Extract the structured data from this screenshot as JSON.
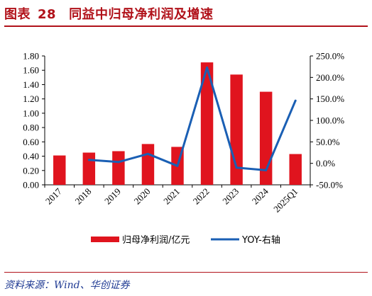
{
  "header": {
    "label": "图表",
    "number": "28",
    "title": "同益中归母净利润及增速"
  },
  "source": "资料来源：Wind、华创证券",
  "colors": {
    "bar": "#e0141e",
    "line": "#1a5fb4",
    "accent": "#b1121a"
  },
  "chart_data": {
    "type": "bar",
    "categories": [
      "2017",
      "2018",
      "2019",
      "2020",
      "2021",
      "2022",
      "2023",
      "2024",
      "2025Q1"
    ],
    "series": [
      {
        "name": "归母净利润/亿元",
        "type": "bar",
        "axis": "left",
        "values": [
          0.41,
          0.45,
          0.47,
          0.57,
          0.53,
          1.71,
          1.54,
          1.3,
          0.43
        ]
      },
      {
        "name": "YOY-右轴",
        "type": "line",
        "axis": "right",
        "values": [
          null,
          8.0,
          3.0,
          22.0,
          -6.0,
          223.0,
          -10.0,
          -16.0,
          146.0
        ]
      }
    ],
    "y_left": {
      "ylim": [
        0,
        1.8
      ],
      "ticks": [
        "0.00",
        "0.20",
        "0.40",
        "0.60",
        "0.80",
        "1.00",
        "1.20",
        "1.40",
        "1.60",
        "1.80"
      ]
    },
    "y_right": {
      "ylim": [
        -50,
        250
      ],
      "ticks": [
        "-50.0%",
        "0.0%",
        "50.0%",
        "100.0%",
        "150.0%",
        "200.0%",
        "250.0%"
      ]
    },
    "grid": false,
    "legend_position": "bottom"
  }
}
